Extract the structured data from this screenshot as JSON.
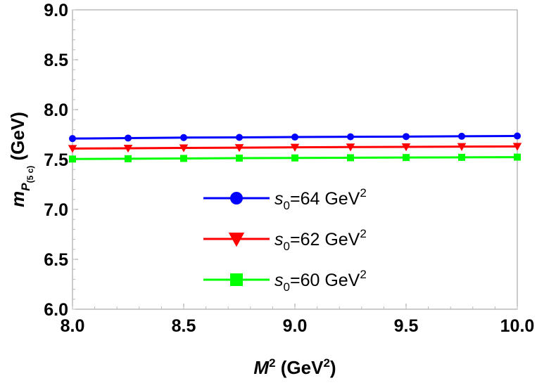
{
  "chart_data": {
    "type": "line",
    "xlabel": {
      "base": "M",
      "sup": "2",
      "unit_open": " (GeV",
      "unit_sup": "2",
      "unit_close": ")"
    },
    "ylabel": {
      "base": "m",
      "sub": "P",
      "subsub": "(5 c)",
      "unit": " (GeV)"
    },
    "xlim": [
      8.0,
      10.0
    ],
    "ylim": [
      6.0,
      9.0
    ],
    "x_ticks": [
      "8.0",
      "8.5",
      "9.0",
      "9.5",
      "10.0"
    ],
    "y_ticks": [
      "6.0",
      "6.5",
      "7.0",
      "7.5",
      "8.0",
      "8.5",
      "9.0"
    ],
    "x": [
      8.0,
      8.25,
      8.5,
      8.75,
      9.0,
      9.25,
      9.5,
      9.75,
      10.0
    ],
    "series": [
      {
        "name": {
          "s": "s",
          "sub": "0",
          "rest": "=64 GeV",
          "sup": "2"
        },
        "color": "#0000ff",
        "marker": "circle",
        "values": [
          7.71,
          7.715,
          7.72,
          7.722,
          7.725,
          7.728,
          7.73,
          7.733,
          7.736
        ]
      },
      {
        "name": {
          "s": "s",
          "sub": "0",
          "rest": "=62 GeV",
          "sup": "2"
        },
        "color": "#ff0000",
        "marker": "triangle-down",
        "values": [
          7.61,
          7.613,
          7.616,
          7.619,
          7.622,
          7.625,
          7.627,
          7.629,
          7.631
        ]
      },
      {
        "name": {
          "s": "s",
          "sub": "0",
          "rest": "=60 GeV",
          "sup": "2"
        },
        "color": "#00ff00",
        "marker": "square",
        "values": [
          7.505,
          7.508,
          7.511,
          7.514,
          7.516,
          7.518,
          7.52,
          7.522,
          7.524
        ]
      }
    ],
    "grid": false,
    "legend_position": "center"
  }
}
